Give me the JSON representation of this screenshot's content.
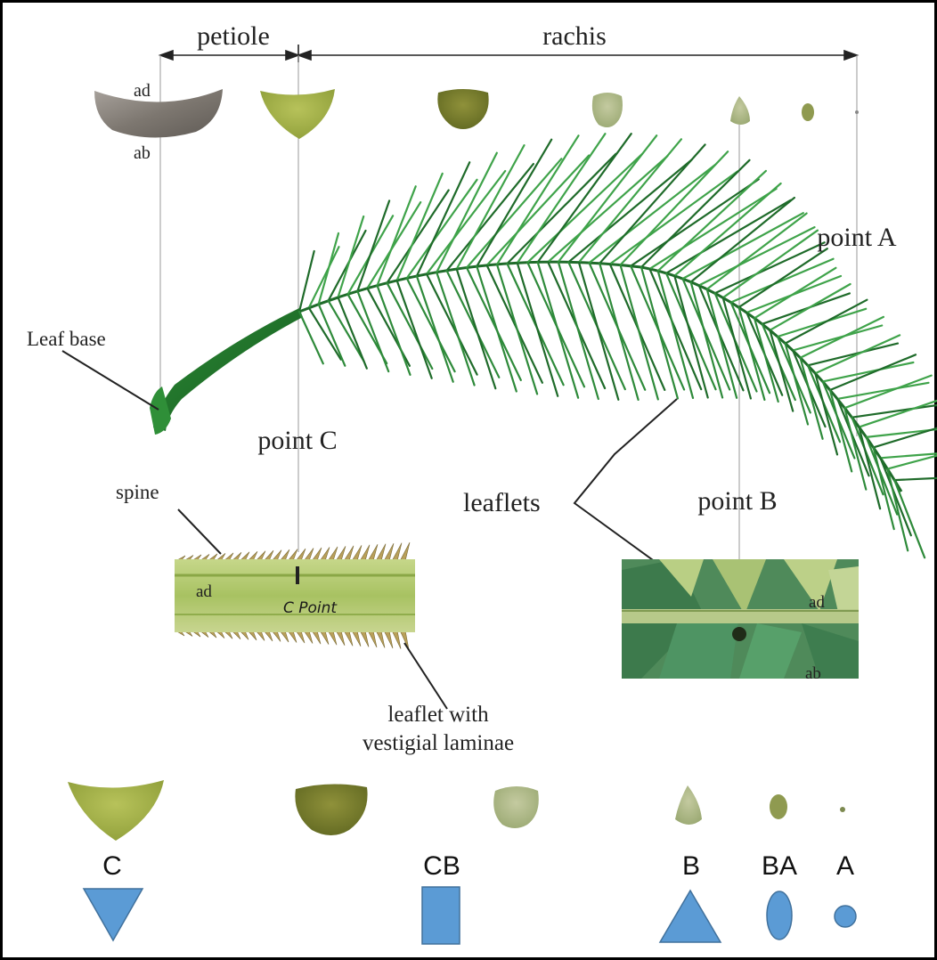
{
  "labels": {
    "petiole": "petiole",
    "rachis": "rachis",
    "ad": "ad",
    "ab": "ab",
    "point_a": "point A",
    "point_b": "point B",
    "point_c": "point C",
    "leaf_base": "Leaf base",
    "spine": "spine",
    "leaflets": "leaflets",
    "leaflet_vestigial_line1": "leaflet with",
    "leaflet_vestigial_line2": "vestigial laminae",
    "inset_c_ad": "ad",
    "inset_c_marker": "C Point",
    "inset_b_ad": "ad",
    "inset_b_ab": "ab"
  },
  "legend": [
    {
      "code": "C",
      "shape": "inverted-triangle"
    },
    {
      "code": "CB",
      "shape": "rectangle"
    },
    {
      "code": "B",
      "shape": "triangle"
    },
    {
      "code": "BA",
      "shape": "ellipse"
    },
    {
      "code": "A",
      "shape": "circle"
    }
  ],
  "colors": {
    "shape_fill": "#5b9bd5",
    "shape_stroke": "#41719c",
    "frond_dark": "#1f6b2a",
    "frond_light": "#3fa34a",
    "section_green": "#9fb04a",
    "frame": "#000000"
  }
}
